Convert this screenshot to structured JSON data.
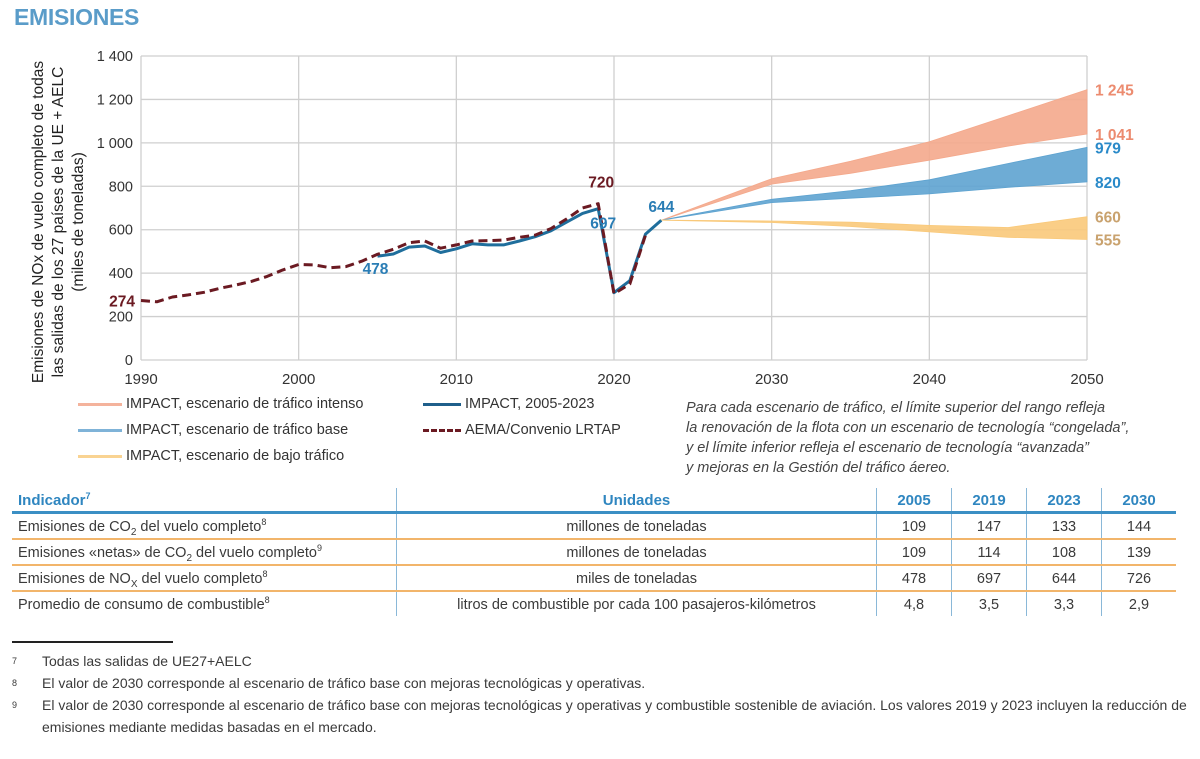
{
  "title": "EMISIONES",
  "chart_data": {
    "type": "line",
    "title": "",
    "ylabel_lines": [
      "Emisiones de NOx de vuelo completo de todas",
      "las salidas de los 27 países de la UE + AELC",
      "(miles de toneladas)"
    ],
    "xlabel": "",
    "xlim": [
      1990,
      2050
    ],
    "ylim": [
      0,
      1400
    ],
    "xticks": [
      1990,
      2000,
      2010,
      2020,
      2030,
      2040,
      2050
    ],
    "yticks": [
      0,
      200,
      400,
      600,
      800,
      1000,
      1200,
      1400
    ],
    "ytick_labels": [
      "0",
      "200",
      "400",
      "600",
      "800",
      "1 000",
      "1 200",
      "1 400"
    ],
    "grid": true,
    "series": [
      {
        "name": "AEMA/Convenio LRTAP",
        "style": "dashed",
        "color": "#6b1a22",
        "x": [
          1990,
          1991,
          1992,
          1993,
          1994,
          1995,
          1996,
          1997,
          1998,
          1999,
          2000,
          2001,
          2002,
          2003,
          2004,
          2005,
          2006,
          2007,
          2008,
          2009,
          2010,
          2011,
          2012,
          2013,
          2014,
          2015,
          2016,
          2017,
          2018,
          2019,
          2020,
          2021,
          2022
        ],
        "y": [
          274,
          268,
          290,
          300,
          312,
          330,
          345,
          362,
          385,
          415,
          440,
          438,
          425,
          430,
          455,
          487,
          510,
          540,
          548,
          515,
          530,
          548,
          550,
          552,
          565,
          575,
          605,
          650,
          700,
          720,
          305,
          350,
          575
        ]
      },
      {
        "name": "IMPACT, 2005-2023",
        "style": "solid",
        "color": "#1f6e9c",
        "x": [
          2005,
          2006,
          2007,
          2008,
          2009,
          2010,
          2011,
          2012,
          2013,
          2014,
          2015,
          2016,
          2017,
          2018,
          2019,
          2020,
          2021,
          2022,
          2023
        ],
        "y": [
          478,
          488,
          520,
          525,
          495,
          512,
          535,
          530,
          530,
          548,
          568,
          595,
          635,
          675,
          697,
          310,
          365,
          580,
          644
        ]
      }
    ],
    "bands": [
      {
        "name": "IMPACT, escenario de tráfico intenso",
        "color": "#f4a98c",
        "x": [
          2023,
          2030,
          2035,
          2040,
          2045,
          2050
        ],
        "upper": [
          644,
          835,
          915,
          1005,
          1125,
          1245
        ],
        "lower": [
          644,
          810,
          860,
          920,
          985,
          1041
        ]
      },
      {
        "name": "IMPACT, escenario de tráfico base",
        "color": "#5ea3d0",
        "x": [
          2023,
          2030,
          2035,
          2040,
          2045,
          2050
        ],
        "upper": [
          644,
          740,
          780,
          830,
          905,
          979
        ],
        "lower": [
          644,
          725,
          745,
          765,
          795,
          820
        ]
      },
      {
        "name": "IMPACT, escenario de bajo tráfico",
        "color": "#f9c97a",
        "x": [
          2023,
          2030,
          2035,
          2040,
          2045,
          2050
        ],
        "upper": [
          644,
          640,
          635,
          620,
          610,
          660
        ],
        "lower": [
          644,
          633,
          615,
          590,
          565,
          555
        ]
      }
    ],
    "annotations": [
      {
        "text": "274",
        "x": 1990,
        "y": 274,
        "color": "#6b1a22",
        "pos": "left"
      },
      {
        "text": "478",
        "x": 2005,
        "y": 478,
        "color": "#2a7db5",
        "pos": "below"
      },
      {
        "text": "720",
        "x": 2019,
        "y": 720,
        "color": "#6b1a22",
        "pos": "above-right"
      },
      {
        "text": "697",
        "x": 2019,
        "y": 697,
        "color": "#2a7db5",
        "pos": "right"
      },
      {
        "text": "644",
        "x": 2023,
        "y": 644,
        "color": "#2a7db5",
        "pos": "above"
      },
      {
        "text": "1 245",
        "x": 2050,
        "y": 1245,
        "color": "#ec8b6f",
        "pos": "right"
      },
      {
        "text": "1 041",
        "x": 2050,
        "y": 1041,
        "color": "#ec8b6f",
        "pos": "right"
      },
      {
        "text": "979",
        "x": 2050,
        "y": 979,
        "color": "#2a8ac9",
        "pos": "right"
      },
      {
        "text": "820",
        "x": 2050,
        "y": 820,
        "color": "#2a8ac9",
        "pos": "right"
      },
      {
        "text": "660",
        "x": 2050,
        "y": 660,
        "color": "#c9a26e",
        "pos": "right"
      },
      {
        "text": "555",
        "x": 2050,
        "y": 555,
        "color": "#c9a26e",
        "pos": "right"
      }
    ]
  },
  "legend": [
    {
      "label": "IMPACT, escenario de tráfico intenso",
      "color": "#f4b39c",
      "style": "solid"
    },
    {
      "label": "IMPACT, escenario de tráfico base",
      "color": "#7fb3d8",
      "style": "solid"
    },
    {
      "label": "IMPACT, escenario de bajo tráfico",
      "color": "#f9d392",
      "style": "solid"
    },
    {
      "label": "IMPACT, 2005-2023",
      "color": "#1f5f8b",
      "style": "solid"
    },
    {
      "label": "AEMA/Convenio LRTAP",
      "color": "#6b1a22",
      "style": "dashed"
    }
  ],
  "note": "Para cada escenario de tráfico, el límite superior del rango refleja\nla renovación de la flota con un escenario de tecnología “congelada”,\ny el límite inferior refleja el escenario de tecnología “avanzada”\ny mejoras en la Gestión del tráfico áereo.",
  "table": {
    "headers": {
      "indicator": "Indicador",
      "indicator_fn": "7",
      "units": "Unidades",
      "years": [
        "2005",
        "2019",
        "2023",
        "2030"
      ]
    },
    "rows": [
      {
        "pre": "Emisiones de CO",
        "sub": "2",
        "post": " del vuelo completo",
        "fn": "8",
        "units": "millones de toneladas",
        "values": [
          "109",
          "147",
          "133",
          "144"
        ]
      },
      {
        "pre": "Emisiones «netas» de CO",
        "sub": "2",
        "post": " del vuelo completo",
        "fn": "9",
        "units": "millones de toneladas",
        "values": [
          "109",
          "114",
          "108",
          "139"
        ]
      },
      {
        "pre": "Emisiones de NO",
        "sub": "X",
        "post": " del vuelo completo",
        "fn": "8",
        "units": "miles de toneladas",
        "values": [
          "478",
          "697",
          "644",
          "726"
        ]
      },
      {
        "pre": "Promedio de consumo de combustible",
        "sub": "",
        "post": "",
        "fn": "8",
        "units": "litros de combustible por cada 100 pasajeros-kilómetros",
        "values": [
          "4,8",
          "3,5",
          "3,3",
          "2,9"
        ]
      }
    ]
  },
  "footnotes": [
    {
      "num": "7",
      "text": "Todas las salidas de UE27+AELC"
    },
    {
      "num": "8",
      "text": "El valor de 2030 corresponde al escenario de tráfico base con mejoras tecnológicas y operativas."
    },
    {
      "num": "9",
      "text": "El valor de 2030 corresponde al escenario de tráfico base con mejoras tecnológicas y operativas y combustible sostenible de aviación. Los valores 2019 y 2023 incluyen la reducción de emisiones mediante medidas basadas en el mercado."
    }
  ]
}
